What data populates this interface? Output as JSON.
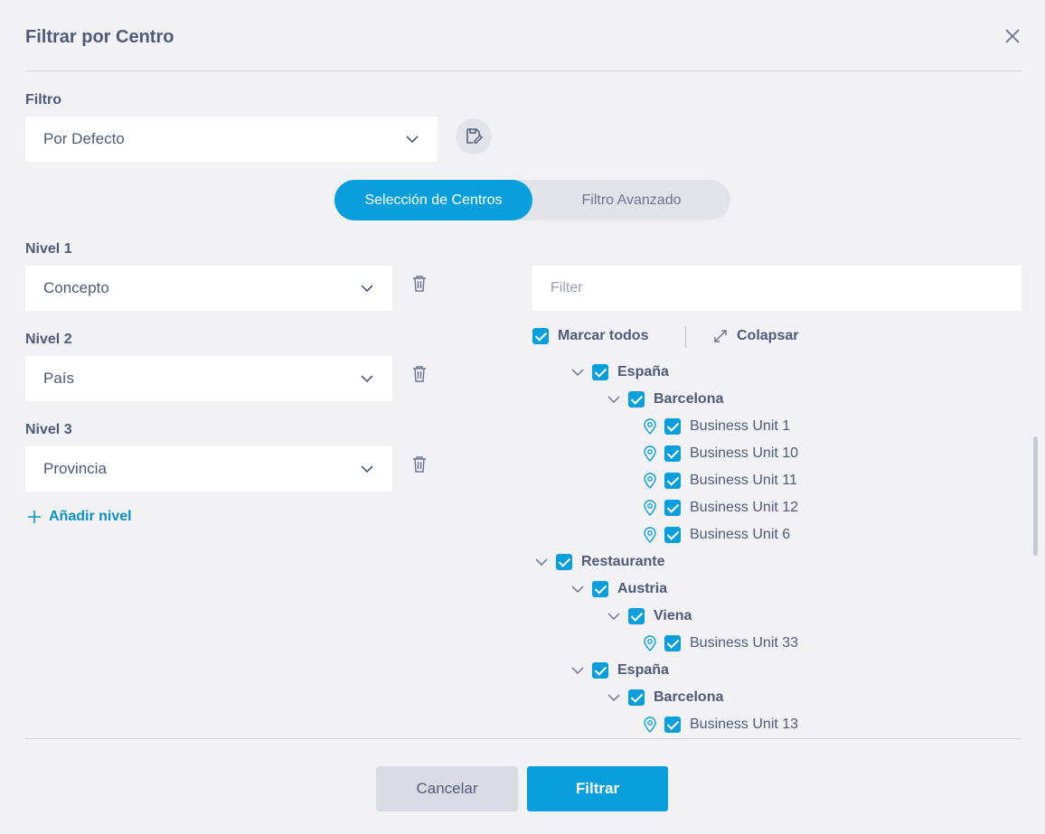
{
  "dialog": {
    "title": "Filtrar por Centro"
  },
  "filter": {
    "label": "Filtro",
    "selected": "Por Defecto"
  },
  "tabs": [
    {
      "label": "Selección de Centros",
      "active": true
    },
    {
      "label": "Filtro Avanzado",
      "active": false
    }
  ],
  "levels": [
    {
      "label": "Nivel 1",
      "value": "Concepto"
    },
    {
      "label": "Nivel 2",
      "value": "País"
    },
    {
      "label": "Nivel 3",
      "value": "Provincia"
    }
  ],
  "add_level": "Añadir nivel",
  "tree_filter": {
    "placeholder": "Filter",
    "value": ""
  },
  "tree_controls": {
    "mark_all": "Marcar todos",
    "collapse": "Colapsar"
  },
  "tree": [
    {
      "label": "España",
      "depth": 1,
      "kind": "group",
      "checked": true
    },
    {
      "label": "Barcelona",
      "depth": 2,
      "kind": "group",
      "checked": true
    },
    {
      "label": "Business Unit 1",
      "depth": 3,
      "kind": "leaf",
      "checked": true
    },
    {
      "label": "Business Unit 10",
      "depth": 3,
      "kind": "leaf",
      "checked": true
    },
    {
      "label": "Business Unit 11",
      "depth": 3,
      "kind": "leaf",
      "checked": true
    },
    {
      "label": "Business Unit 12",
      "depth": 3,
      "kind": "leaf",
      "checked": true
    },
    {
      "label": "Business Unit 6",
      "depth": 3,
      "kind": "leaf",
      "checked": true
    },
    {
      "label": "Restaurante",
      "depth": 0,
      "kind": "group",
      "checked": true
    },
    {
      "label": "Austria",
      "depth": 1,
      "kind": "group",
      "checked": true
    },
    {
      "label": "Viena",
      "depth": 2,
      "kind": "group",
      "checked": true
    },
    {
      "label": "Business Unit 33",
      "depth": 3,
      "kind": "leaf",
      "checked": true
    },
    {
      "label": "España",
      "depth": 1,
      "kind": "group",
      "checked": true
    },
    {
      "label": "Barcelona",
      "depth": 2,
      "kind": "group",
      "checked": true
    },
    {
      "label": "Business Unit 13",
      "depth": 3,
      "kind": "leaf",
      "checked": true
    }
  ],
  "footer": {
    "cancel": "Cancelar",
    "submit": "Filtrar"
  },
  "colors": {
    "accent": "#0a9fdc",
    "text": "#505a78",
    "background": "#f2f2f5"
  },
  "icons": {
    "close": "close-icon",
    "dropdown": "chevron-down-icon",
    "save_filter": "save-edit-icon",
    "delete": "trash-icon",
    "add": "plus-icon",
    "collapse": "expand-arrows-icon",
    "location": "location-pin-icon",
    "checkbox": "checkbox-checked-icon"
  }
}
